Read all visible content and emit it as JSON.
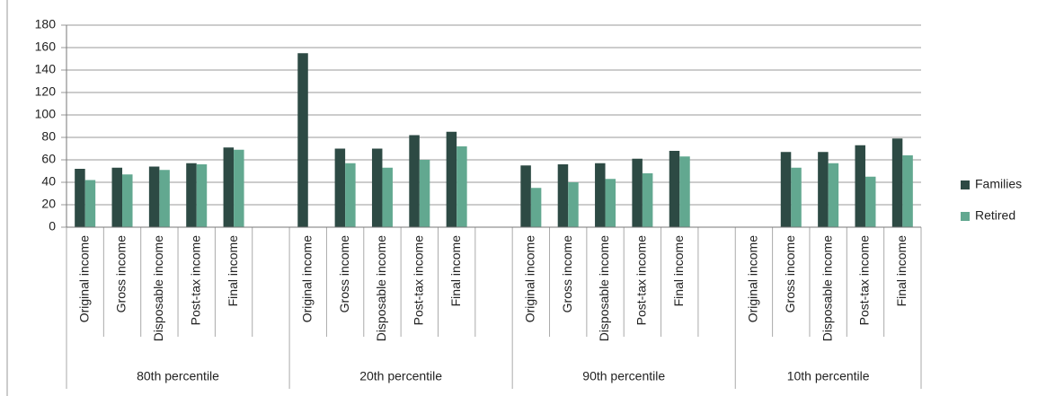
{
  "chart_data": {
    "type": "bar",
    "categories": [
      "Original income",
      "Gross income",
      "Disposable income",
      "Post-tax income",
      "Final income",
      null,
      "Original income",
      "Gross income",
      "Disposable income",
      "Post-tax income",
      "Final income",
      null,
      "Original income",
      "Gross income",
      "Disposable income",
      "Post-tax income",
      "Final income",
      null,
      "Original income",
      "Gross income",
      "Disposable income",
      "Post-tax income",
      "Final income"
    ],
    "groups": [
      "80th percentile",
      "20th percentile",
      "90th percentile",
      "10th percentile"
    ],
    "series": [
      {
        "name": "Families",
        "color": "#2d4a44",
        "values": [
          52,
          53,
          54,
          57,
          71,
          null,
          155,
          70,
          70,
          82,
          85,
          null,
          55,
          56,
          57,
          61,
          68,
          null,
          null,
          67,
          67,
          73,
          79
        ]
      },
      {
        "name": "Retired",
        "color": "#62a890",
        "values": [
          42,
          47,
          51,
          56,
          69,
          null,
          null,
          57,
          53,
          60,
          72,
          null,
          35,
          40,
          43,
          48,
          63,
          null,
          null,
          53,
          57,
          45,
          64
        ]
      }
    ],
    "ylim": [
      0,
      180
    ],
    "yticks": [
      0,
      20,
      40,
      60,
      80,
      100,
      120,
      140,
      160,
      180
    ],
    "grid": true,
    "legend": "right"
  }
}
